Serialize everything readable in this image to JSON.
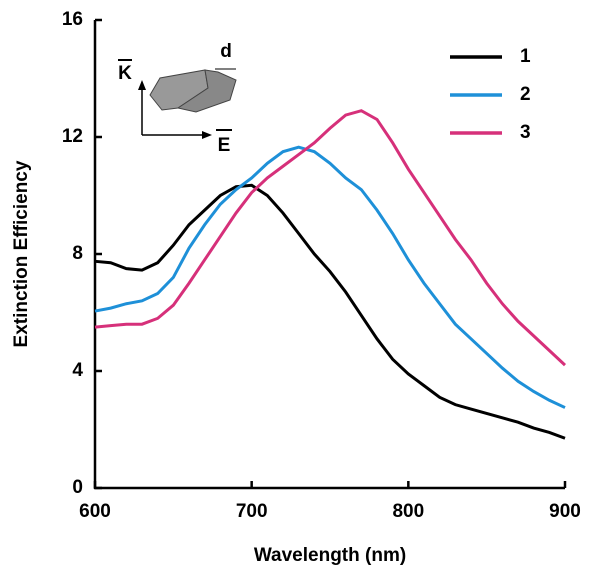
{
  "chart_data": {
    "type": "line",
    "x_label": "Wavelength (nm)",
    "y_label": "Extinction Efficiency",
    "x": [
      600,
      610,
      620,
      630,
      640,
      650,
      660,
      670,
      680,
      690,
      700,
      710,
      720,
      730,
      740,
      750,
      760,
      770,
      780,
      790,
      800,
      810,
      820,
      830,
      840,
      850,
      860,
      870,
      880,
      890,
      900
    ],
    "series": [
      {
        "name": "1",
        "color": "#000000",
        "values": [
          7.75,
          7.7,
          7.5,
          7.45,
          7.7,
          8.3,
          9.0,
          9.5,
          10.0,
          10.3,
          10.35,
          10.0,
          9.4,
          8.7,
          8.0,
          7.4,
          6.7,
          5.9,
          5.1,
          4.4,
          3.9,
          3.5,
          3.1,
          2.85,
          2.7,
          2.55,
          2.4,
          2.25,
          2.05,
          1.9,
          1.7
        ]
      },
      {
        "name": "2",
        "color": "#1e90d8",
        "values": [
          6.05,
          6.15,
          6.3,
          6.4,
          6.65,
          7.2,
          8.2,
          9.0,
          9.7,
          10.2,
          10.6,
          11.1,
          11.5,
          11.65,
          11.5,
          11.1,
          10.6,
          10.2,
          9.5,
          8.7,
          7.8,
          7.0,
          6.3,
          5.6,
          5.1,
          4.6,
          4.1,
          3.65,
          3.3,
          3.0,
          2.75
        ]
      },
      {
        "name": "3",
        "color": "#d6307a",
        "values": [
          5.5,
          5.55,
          5.6,
          5.6,
          5.8,
          6.25,
          7.0,
          7.8,
          8.6,
          9.4,
          10.1,
          10.6,
          11.0,
          11.4,
          11.8,
          12.3,
          12.75,
          12.9,
          12.6,
          11.8,
          10.9,
          10.1,
          9.3,
          8.5,
          7.8,
          7.0,
          6.3,
          5.7,
          5.2,
          4.7,
          4.2
        ]
      }
    ],
    "xlim": [
      600,
      900
    ],
    "xticks": [
      600,
      700,
      800,
      900
    ],
    "ylim": [
      0,
      16
    ],
    "yticks": [
      0,
      4,
      8,
      12,
      16
    ],
    "legend": "upper right",
    "annotations": [
      "K",
      "E",
      "d"
    ]
  }
}
